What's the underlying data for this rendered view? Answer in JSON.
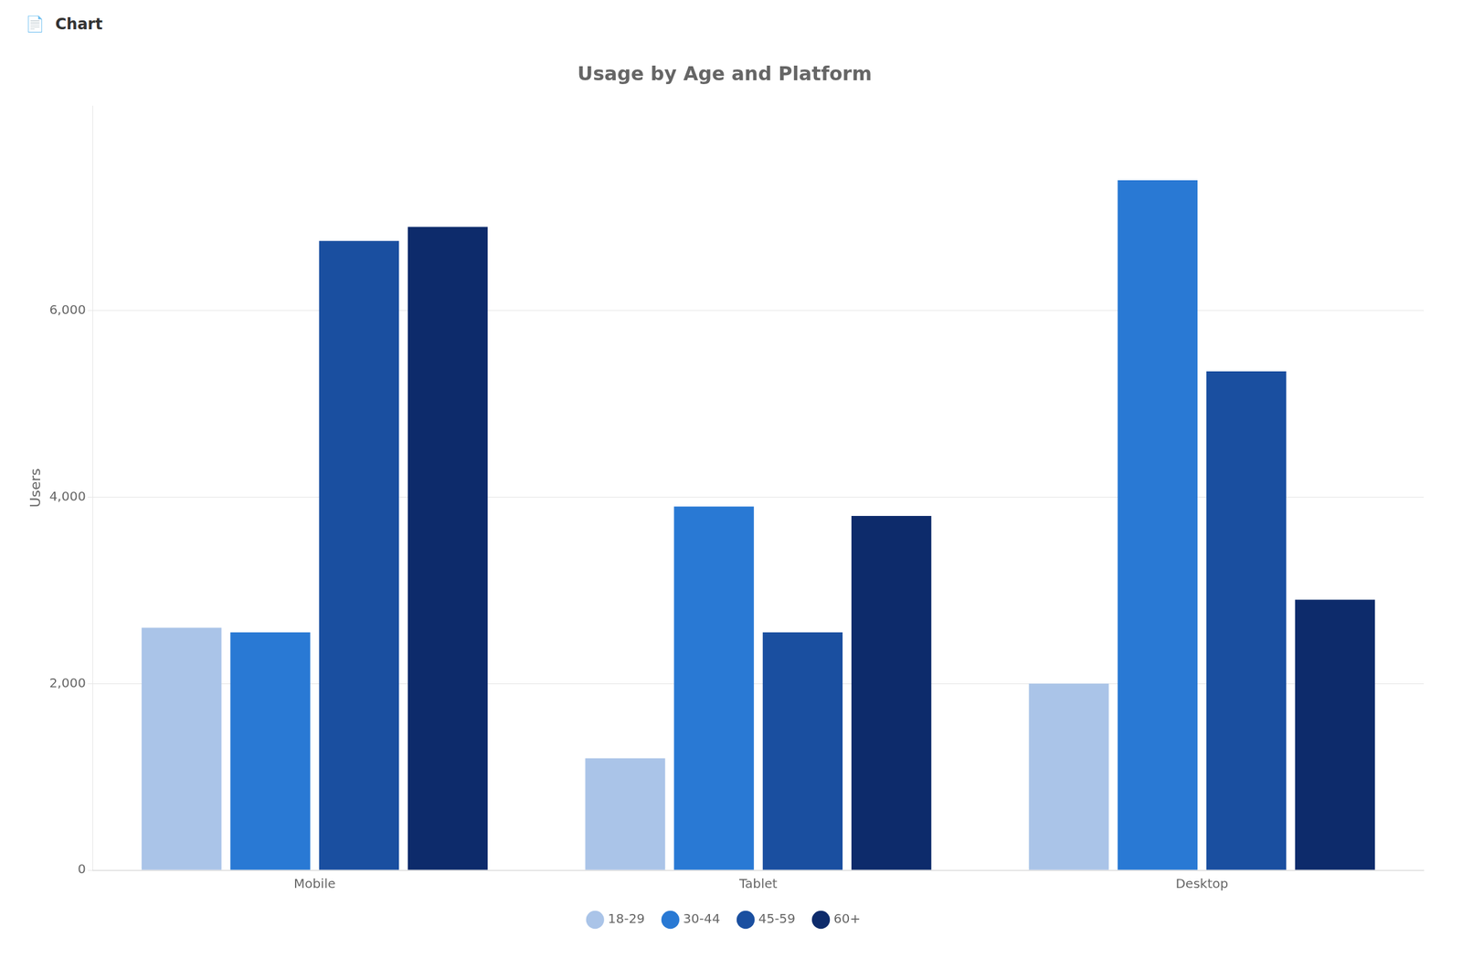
{
  "chart_data": {
    "type": "bar",
    "title": "Usage by Age and Platform",
    "ylabel": "Users",
    "annotations": [
      "📄  Chart"
    ],
    "categories": [
      "Mobile",
      "Tablet",
      "Desktop"
    ],
    "series": [
      {
        "name": "18-29",
        "color": "#aac4e8",
        "values": [
          2600,
          1200,
          2000
        ]
      },
      {
        "name": "30-44",
        "color": "#2979d4",
        "values": [
          2550,
          3900,
          7400
        ]
      },
      {
        "name": "45-59",
        "color": "#1a4fa0",
        "values": [
          6750,
          2550,
          5350
        ]
      },
      {
        "name": "60+",
        "color": "#0d2b6b",
        "values": [
          6900,
          3800,
          2900
        ]
      }
    ],
    "ylim": [
      0,
      8200
    ],
    "yticks": [
      0,
      {
        "value": 2000,
        "label": "2,000"
      },
      {
        "value": 4000,
        "label": "4,000"
      },
      {
        "value": 6000,
        "label": "6,000"
      }
    ],
    "grid": true,
    "legend": "bottom"
  }
}
